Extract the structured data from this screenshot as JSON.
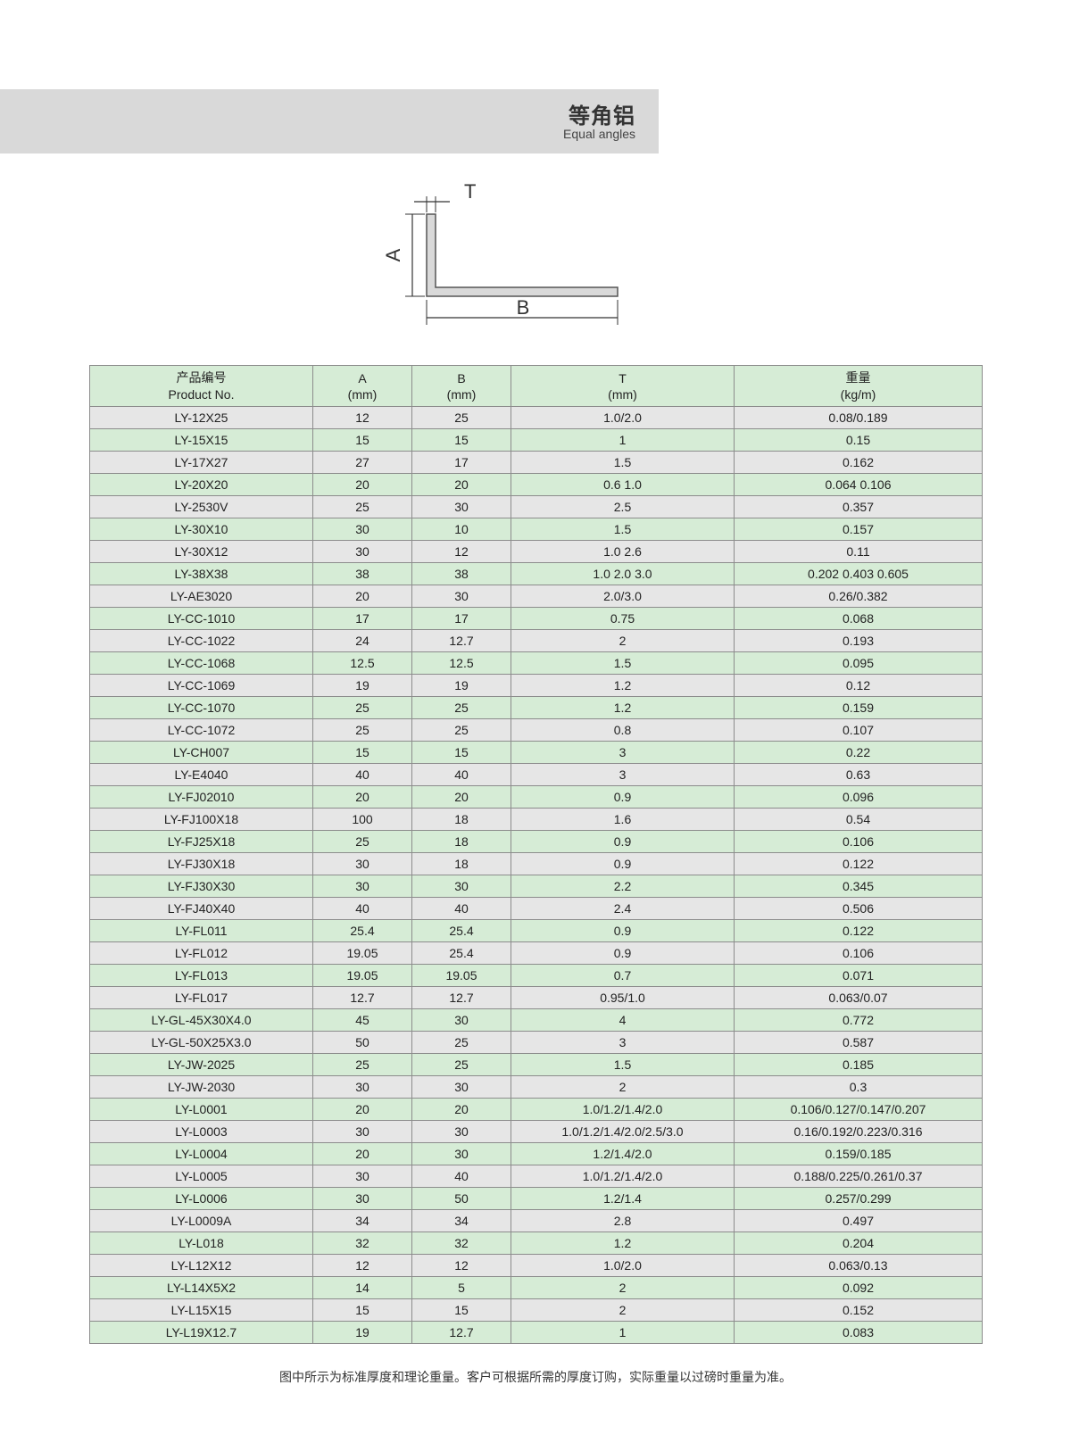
{
  "header": {
    "title_zh": "等角铝",
    "title_en": "Equal angles"
  },
  "diagram": {
    "label_a": "A",
    "label_b": "B",
    "label_t": "T",
    "fill": "#d9d9d9",
    "stroke": "#555555"
  },
  "table": {
    "headers": [
      {
        "zh": "产品编号",
        "en": "Product  No."
      },
      {
        "zh": "A",
        "en": "(mm)"
      },
      {
        "zh": "B",
        "en": "(mm)"
      },
      {
        "zh": "T",
        "en": "(mm)"
      },
      {
        "zh": "重量",
        "en": "(kg/m)"
      }
    ],
    "rows": [
      [
        "LY-12X25",
        "12",
        "25",
        "1.0/2.0",
        "0.08/0.189"
      ],
      [
        "LY-15X15",
        "15",
        "15",
        "1",
        "0.15"
      ],
      [
        "LY-17X27",
        "27",
        "17",
        "1.5",
        "0.162"
      ],
      [
        "LY-20X20",
        "20",
        "20",
        "0.6  1.0",
        "0.064  0.106"
      ],
      [
        "LY-2530V",
        "25",
        "30",
        "2.5",
        "0.357"
      ],
      [
        "LY-30X10",
        "30",
        "10",
        "1.5",
        "0.157"
      ],
      [
        "LY-30X12",
        "30",
        "12",
        "1.0  2.6",
        "0.11"
      ],
      [
        "LY-38X38",
        "38",
        "38",
        "1.0  2.0  3.0",
        "0.202  0.403  0.605"
      ],
      [
        "LY-AE3020",
        "20",
        "30",
        "2.0/3.0",
        "0.26/0.382"
      ],
      [
        "LY-CC-1010",
        "17",
        "17",
        "0.75",
        "0.068"
      ],
      [
        "LY-CC-1022",
        "24",
        "12.7",
        "2",
        "0.193"
      ],
      [
        "LY-CC-1068",
        "12.5",
        "12.5",
        "1.5",
        "0.095"
      ],
      [
        "LY-CC-1069",
        "19",
        "19",
        "1.2",
        "0.12"
      ],
      [
        "LY-CC-1070",
        "25",
        "25",
        "1.2",
        "0.159"
      ],
      [
        "LY-CC-1072",
        "25",
        "25",
        "0.8",
        "0.107"
      ],
      [
        "LY-CH007",
        "15",
        "15",
        "3",
        "0.22"
      ],
      [
        "LY-E4040",
        "40",
        "40",
        "3",
        "0.63"
      ],
      [
        "LY-FJ02010",
        "20",
        "20",
        "0.9",
        "0.096"
      ],
      [
        "LY-FJ100X18",
        "100",
        "18",
        "1.6",
        "0.54"
      ],
      [
        "LY-FJ25X18",
        "25",
        "18",
        "0.9",
        "0.106"
      ],
      [
        "LY-FJ30X18",
        "30",
        "18",
        "0.9",
        "0.122"
      ],
      [
        "LY-FJ30X30",
        "30",
        "30",
        "2.2",
        "0.345"
      ],
      [
        "LY-FJ40X40",
        "40",
        "40",
        "2.4",
        "0.506"
      ],
      [
        "LY-FL011",
        "25.4",
        "25.4",
        "0.9",
        "0.122"
      ],
      [
        "LY-FL012",
        "19.05",
        "25.4",
        "0.9",
        "0.106"
      ],
      [
        "LY-FL013",
        "19.05",
        "19.05",
        "0.7",
        "0.071"
      ],
      [
        "LY-FL017",
        "12.7",
        "12.7",
        "0.95/1.0",
        "0.063/0.07"
      ],
      [
        "LY-GL-45X30X4.0",
        "45",
        "30",
        "4",
        "0.772"
      ],
      [
        "LY-GL-50X25X3.0",
        "50",
        "25",
        "3",
        "0.587"
      ],
      [
        "LY-JW-2025",
        "25",
        "25",
        "1.5",
        "0.185"
      ],
      [
        "LY-JW-2030",
        "30",
        "30",
        "2",
        "0.3"
      ],
      [
        "LY-L0001",
        "20",
        "20",
        "1.0/1.2/1.4/2.0",
        "0.106/0.127/0.147/0.207"
      ],
      [
        "LY-L0003",
        "30",
        "30",
        "1.0/1.2/1.4/2.0/2.5/3.0",
        "0.16/0.192/0.223/0.316"
      ],
      [
        "LY-L0004",
        "20",
        "30",
        "1.2/1.4/2.0",
        "0.159/0.185"
      ],
      [
        "LY-L0005",
        "30",
        "40",
        "1.0/1.2/1.4/2.0",
        "0.188/0.225/0.261/0.37"
      ],
      [
        "LY-L0006",
        "30",
        "50",
        "1.2/1.4",
        "0.257/0.299"
      ],
      [
        "LY-L0009A",
        "34",
        "34",
        "2.8",
        "0.497"
      ],
      [
        "LY-L018",
        "32",
        "32",
        "1.2",
        "0.204"
      ],
      [
        "LY-L12X12",
        "12",
        "12",
        "1.0/2.0",
        "0.063/0.13"
      ],
      [
        "LY-L14X5X2",
        "14",
        "5",
        "2",
        "0.092"
      ],
      [
        "LY-L15X15",
        "15",
        "15",
        "2",
        "0.152"
      ],
      [
        "LY-L19X12.7",
        "19",
        "12.7",
        "1",
        "0.083"
      ]
    ]
  },
  "footnote": "图中所示为标准厚度和理论重量。客户可根据所需的厚度订购，实际重量以过磅时重量为准。",
  "colors": {
    "header_band": "#d9d9d9",
    "row_green": "#d6ecd6",
    "row_gray": "#e6e6e6",
    "grid": "#8c8c8c"
  }
}
